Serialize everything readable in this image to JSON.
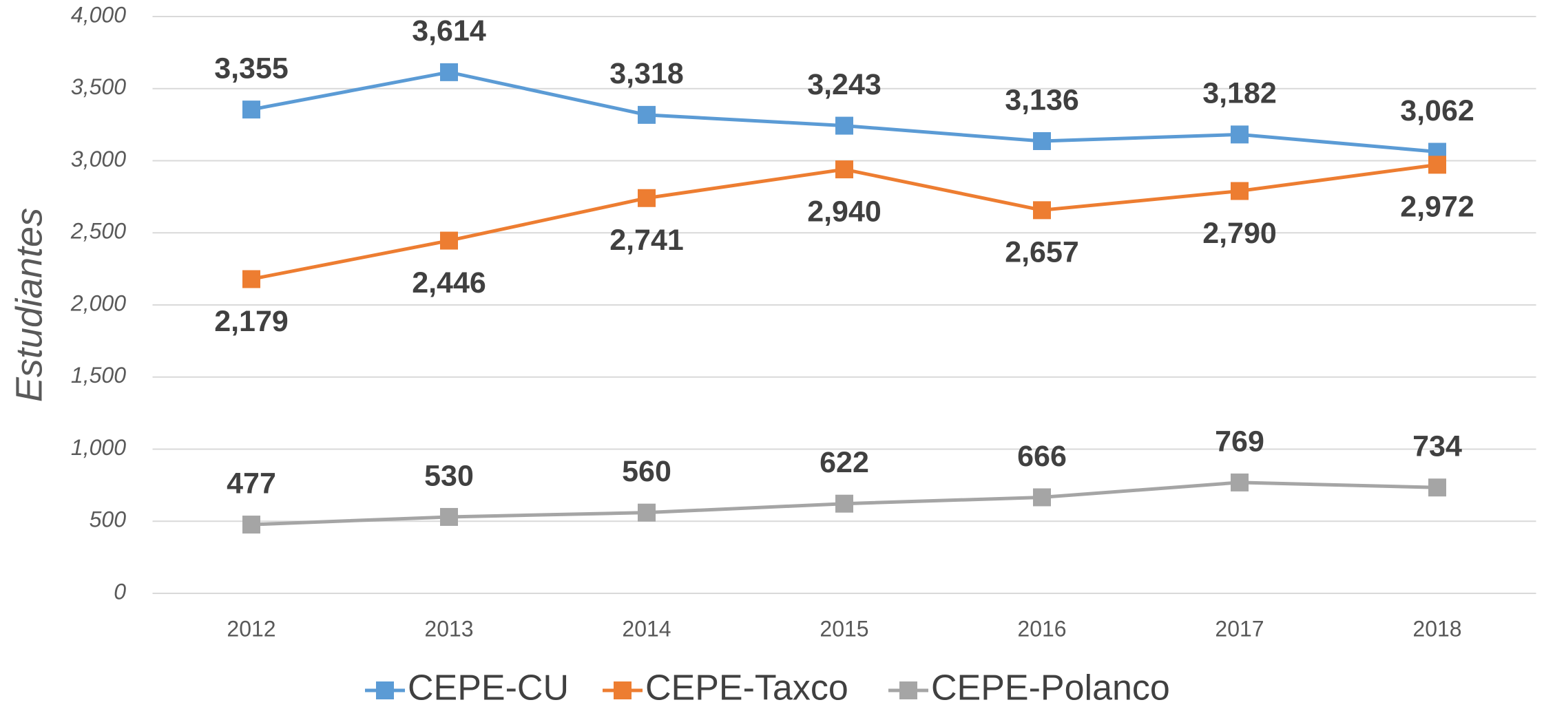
{
  "chart_data": {
    "type": "line",
    "y_label": "Estudiantes",
    "categories": [
      "2012",
      "2013",
      "2014",
      "2015",
      "2016",
      "2017",
      "2018"
    ],
    "series": [
      {
        "name": "CEPE-CU",
        "color": "#5b9bd5",
        "values": [
          3355,
          3614,
          3318,
          3243,
          3136,
          3182,
          3062
        ],
        "value_labels": [
          "3,355",
          "3,614",
          "3,318",
          "3,243",
          "3,136",
          "3,182",
          "3,062"
        ]
      },
      {
        "name": "CEPE-Taxco",
        "color": "#ed7d31",
        "values": [
          2179,
          2446,
          2741,
          2940,
          2657,
          2790,
          2972
        ],
        "value_labels": [
          "2,179",
          "2,446",
          "2,741",
          "2,940",
          "2,657",
          "2,790",
          "2,972"
        ]
      },
      {
        "name": "CEPE-Polanco",
        "color": "#a5a5a5",
        "values": [
          477,
          530,
          560,
          622,
          666,
          769,
          734
        ],
        "value_labels": [
          "477",
          "530",
          "560",
          "622",
          "666",
          "769",
          "734"
        ]
      }
    ],
    "ylim": [
      0,
      4000
    ],
    "yticks": [
      0,
      500,
      {
        "value": 1000,
        "label": "1,000"
      },
      {
        "value": 1500,
        "label": "1,500"
      },
      {
        "value": 2000,
        "label": "2,000"
      },
      {
        "value": 2500,
        "label": "2,500"
      },
      {
        "value": 3000,
        "label": "3,000"
      },
      {
        "value": 3500,
        "label": "3,500"
      },
      {
        "value": 4000,
        "label": "4,000"
      }
    ],
    "grid": true,
    "legend": "bottom"
  }
}
